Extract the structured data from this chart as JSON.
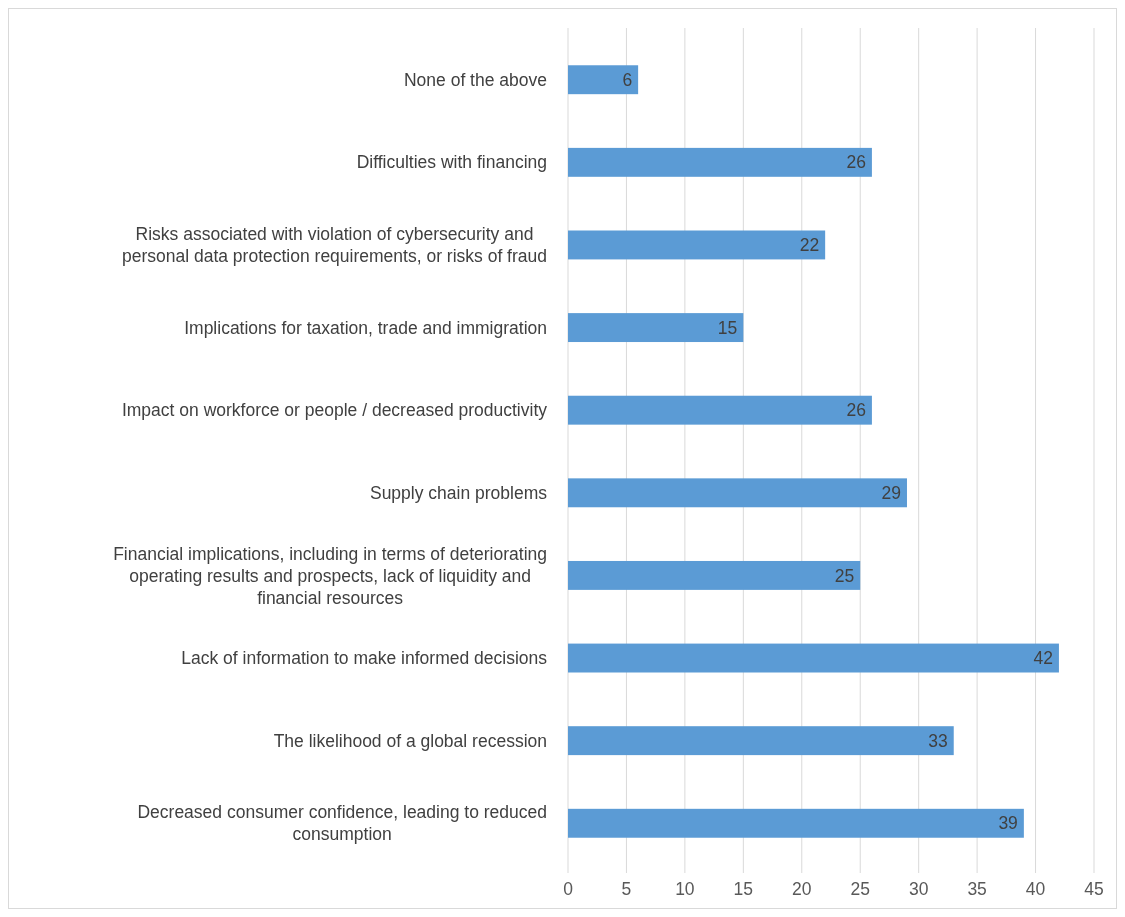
{
  "chart_data": {
    "type": "bar",
    "orientation": "horizontal",
    "categories": [
      "None of the above",
      "Difficulties with financing",
      "Risks associated with violation of cybersecurity and personal data protection requirements, or risks of fraud",
      "Implications for taxation, trade and immigration",
      "Impact on workforce or people / decreased productivity",
      "Supply chain problems",
      "Financial implications, including in terms of deteriorating operating results and prospects, lack of liquidity and financial resources",
      "Lack of information to make informed decisions",
      "The likelihood of a global recession",
      "Decreased consumer confidence, leading to reduced consumption"
    ],
    "values": [
      6,
      26,
      22,
      15,
      26,
      29,
      25,
      42,
      33,
      39
    ],
    "color": "#5b9bd5",
    "xlim": [
      0,
      45
    ],
    "xticks": [
      0,
      5,
      10,
      15,
      20,
      25,
      30,
      35,
      40,
      45
    ],
    "grid": "x",
    "data_labels": true
  }
}
